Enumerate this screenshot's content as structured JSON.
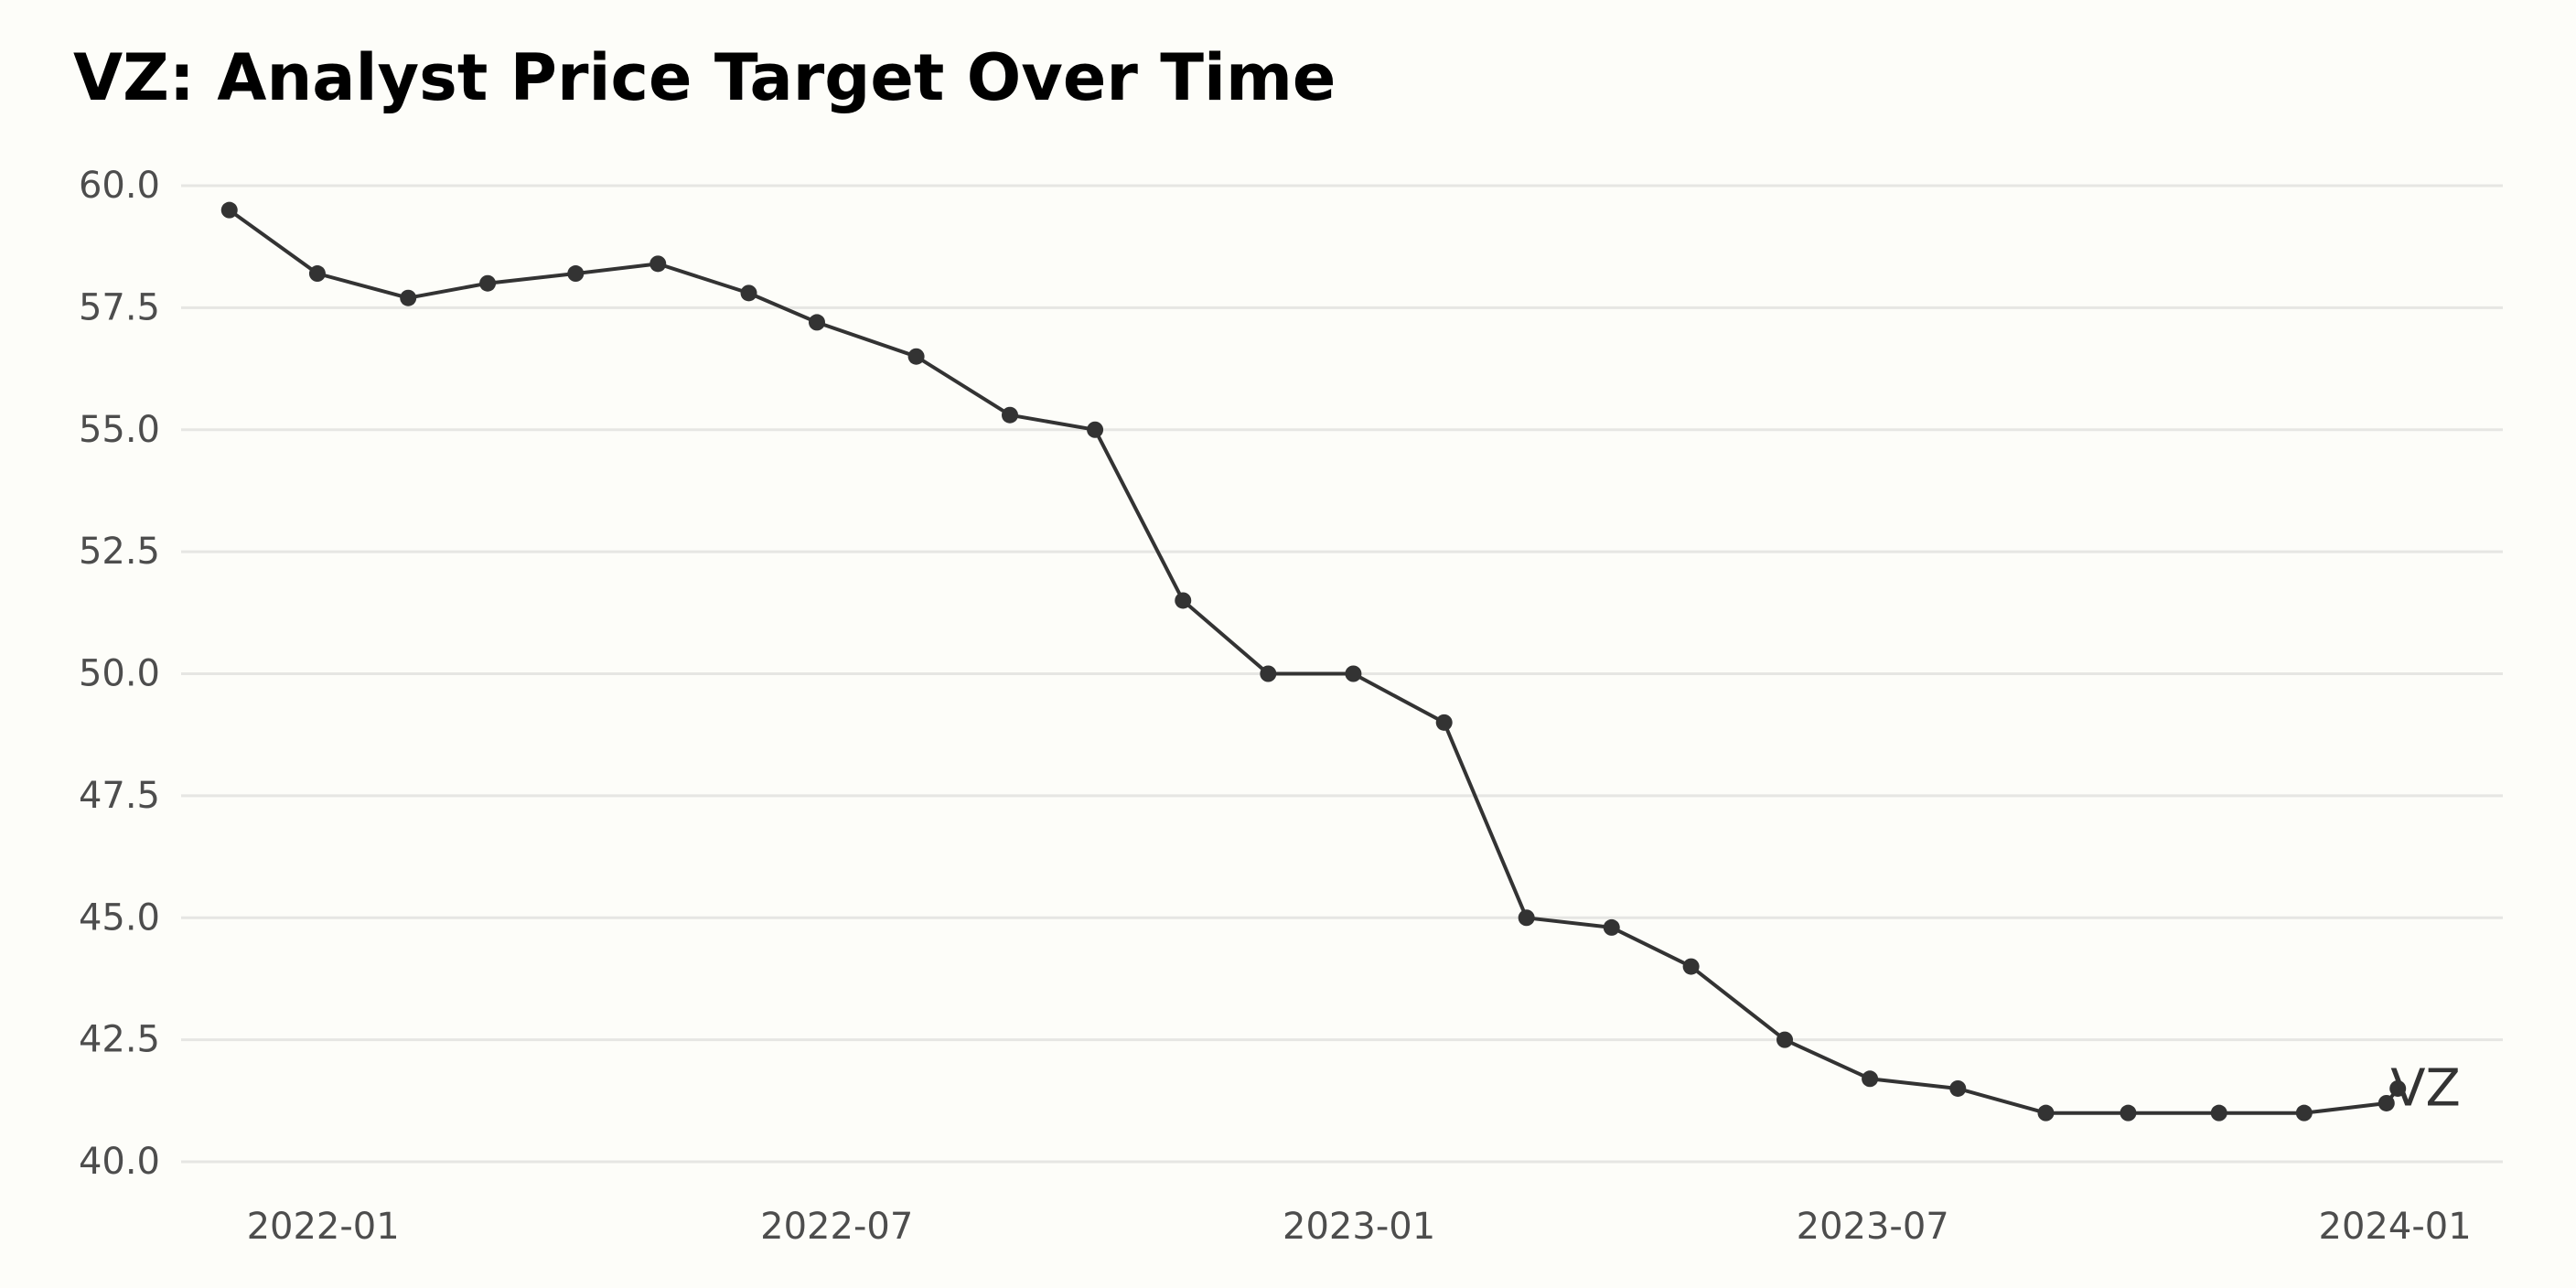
{
  "chart_data": {
    "type": "line",
    "title": "VZ: Analyst Price Target Over Time",
    "xlabel": "",
    "ylabel": "",
    "ylim": [
      40.0,
      60.0
    ],
    "xlim": [
      "2021-11-12",
      "2024-02-08"
    ],
    "y_ticks": [
      "40.0",
      "42.5",
      "45.0",
      "47.5",
      "50.0",
      "52.5",
      "55.0",
      "57.5",
      "60.0"
    ],
    "x_ticks": [
      "2022-01",
      "2022-07",
      "2023-01",
      "2023-07",
      "2024-01"
    ],
    "grid": "horizontal",
    "legend": "none",
    "series": [
      {
        "label": "VZ",
        "color": "#333333",
        "points": [
          {
            "x": "2021-11-29",
            "y": 59.5
          },
          {
            "x": "2021-12-30",
            "y": 58.2
          },
          {
            "x": "2022-01-31",
            "y": 57.7
          },
          {
            "x": "2022-02-28",
            "y": 58.0
          },
          {
            "x": "2022-03-31",
            "y": 58.2
          },
          {
            "x": "2022-04-29",
            "y": 58.4
          },
          {
            "x": "2022-05-31",
            "y": 57.8
          },
          {
            "x": "2022-06-24",
            "y": 57.2
          },
          {
            "x": "2022-07-29",
            "y": 56.5
          },
          {
            "x": "2022-08-31",
            "y": 55.3
          },
          {
            "x": "2022-09-30",
            "y": 55.0
          },
          {
            "x": "2022-10-31",
            "y": 51.5
          },
          {
            "x": "2022-11-30",
            "y": 50.0
          },
          {
            "x": "2022-12-30",
            "y": 50.0
          },
          {
            "x": "2023-01-31",
            "y": 49.0
          },
          {
            "x": "2023-03-01",
            "y": 45.0
          },
          {
            "x": "2023-03-31",
            "y": 44.8
          },
          {
            "x": "2023-04-28",
            "y": 44.0
          },
          {
            "x": "2023-05-31",
            "y": 42.5
          },
          {
            "x": "2023-06-30",
            "y": 41.7
          },
          {
            "x": "2023-07-31",
            "y": 41.5
          },
          {
            "x": "2023-08-31",
            "y": 41.0
          },
          {
            "x": "2023-09-29",
            "y": 41.0
          },
          {
            "x": "2023-10-31",
            "y": 41.0
          },
          {
            "x": "2023-11-30",
            "y": 41.0
          },
          {
            "x": "2023-12-29",
            "y": 41.2
          },
          {
            "x": "2024-01-02",
            "y": 41.5
          }
        ]
      }
    ]
  }
}
